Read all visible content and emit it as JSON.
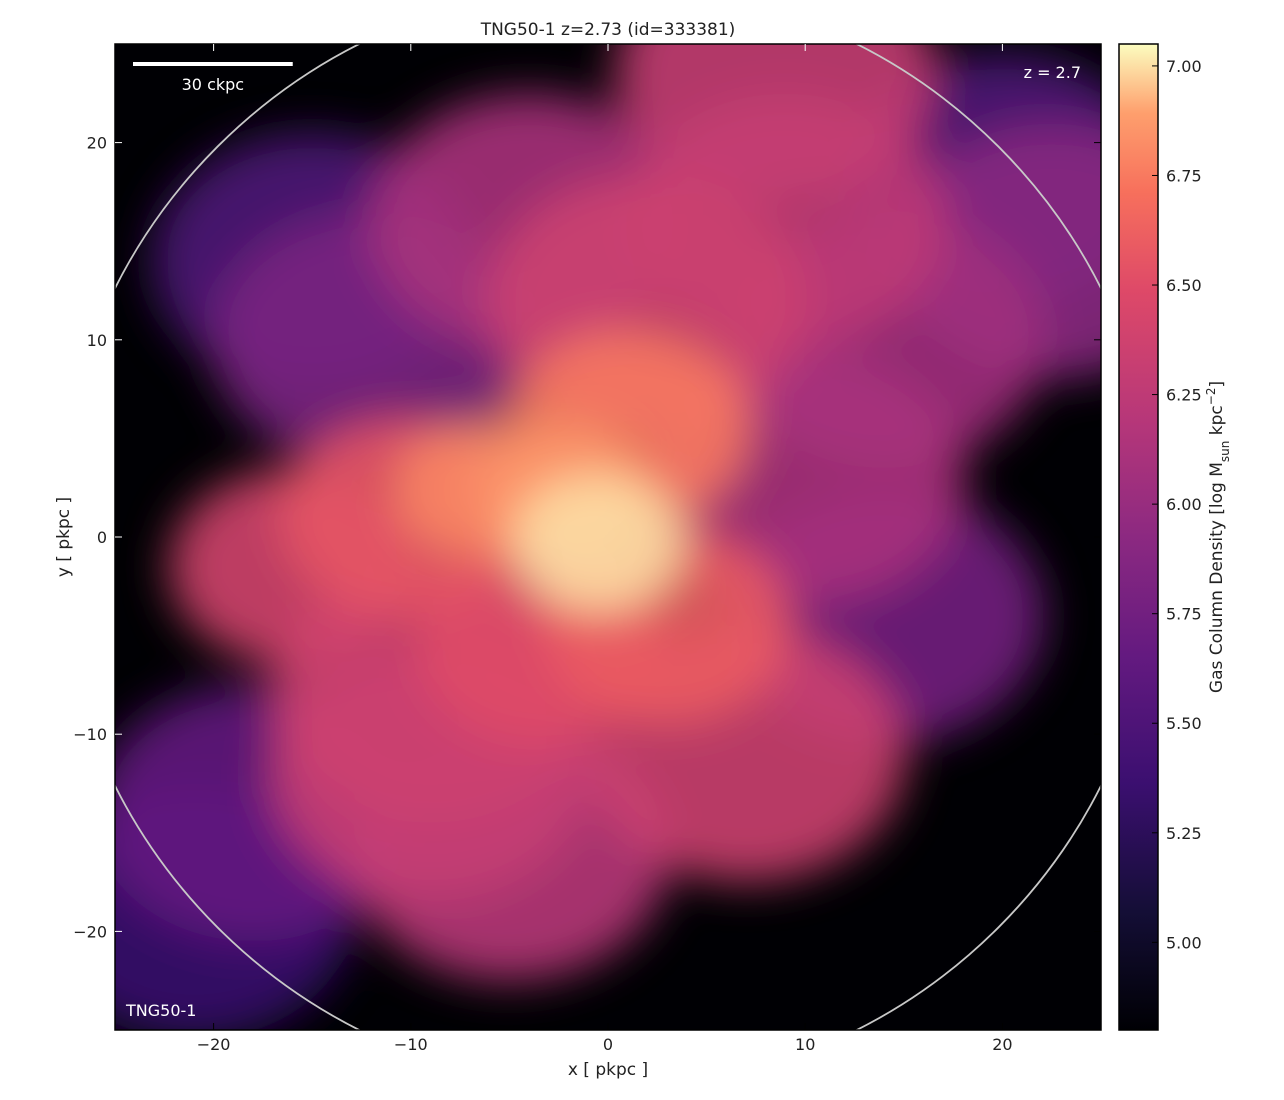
{
  "chart_data": {
    "type": "heatmap",
    "title": "TNG50-1 z=2.73 (id=333381)",
    "xlabel": "x [ pkpc ]",
    "ylabel": "y [ pkpc ]",
    "xlim": [
      -25,
      25
    ],
    "ylim": [
      -25,
      25
    ],
    "xticks": [
      -20,
      -10,
      0,
      10,
      20
    ],
    "yticks": [
      20,
      10,
      0,
      -10,
      -20
    ],
    "xtick_labels": [
      "−20",
      "−10",
      "0",
      "10",
      "20"
    ],
    "ytick_labels": [
      "20",
      "10",
      "0",
      "−10",
      "−20"
    ],
    "colorbar": {
      "label": "Gas Column Density [log M",
      "label_sub": "sun",
      "label_mid": " kpc",
      "label_sup": "−2",
      "label_end": "]",
      "range": [
        4.8,
        7.05
      ],
      "ticks": [
        7.0,
        6.75,
        6.5,
        6.25,
        6.0,
        5.75,
        5.5,
        5.25,
        5.0
      ],
      "tick_labels": [
        "7.00",
        "6.75",
        "6.50",
        "6.25",
        "6.00",
        "5.75",
        "5.50",
        "5.25",
        "5.00"
      ],
      "colormap": "magma"
    },
    "circle": {
      "center": [
        0,
        0
      ],
      "radius": 28,
      "color": "#c8c8c8"
    },
    "scale_bar": {
      "label": "30 ckpc",
      "length_pkpc": 8.1
    },
    "annotations": {
      "redshift": "z = 2.7",
      "simulation": "TNG50-1"
    },
    "blobs": [
      {
        "x": -0.5,
        "y": -0.3,
        "level": 7.0
      },
      {
        "x": -2.5,
        "y": 2.5,
        "level": 6.85
      },
      {
        "x": 1.0,
        "y": 5.5,
        "level": 6.75
      },
      {
        "x": -6.5,
        "y": 2.4,
        "level": 6.8
      },
      {
        "x": -10.5,
        "y": 1.0,
        "level": 6.55
      },
      {
        "x": -16.0,
        "y": -1.5,
        "level": 6.4
      },
      {
        "x": 3.0,
        "y": -4.5,
        "level": 6.6
      },
      {
        "x": -3.5,
        "y": -5.5,
        "level": 6.5
      },
      {
        "x": -9.0,
        "y": -8.0,
        "level": 6.35
      },
      {
        "x": -9.0,
        "y": -12.0,
        "level": 6.3
      },
      {
        "x": -5.0,
        "y": -16.0,
        "level": 6.2
      },
      {
        "x": 7.0,
        "y": -11.0,
        "level": 6.35
      },
      {
        "x": 2.0,
        "y": 12.0,
        "level": 6.35
      },
      {
        "x": 9.0,
        "y": 16.0,
        "level": 6.25
      },
      {
        "x": 8.5,
        "y": 23.5,
        "level": 6.3
      },
      {
        "x": -4.0,
        "y": 16.0,
        "level": 6.1
      },
      {
        "x": 10.0,
        "y": 3.0,
        "level": 6.1
      },
      {
        "x": 14.0,
        "y": 10.0,
        "level": 6.05
      },
      {
        "x": -12.0,
        "y": 10.0,
        "level": 5.8
      },
      {
        "x": 14.0,
        "y": -4.0,
        "level": 5.75
      },
      {
        "x": -18.0,
        "y": -14.0,
        "level": 5.65
      },
      {
        "x": -15.0,
        "y": 14.0,
        "level": 5.5
      },
      {
        "x": 20.0,
        "y": 18.0,
        "level": 5.5
      },
      {
        "x": 22.5,
        "y": 14.5,
        "level": 5.9
      },
      {
        "x": -21.0,
        "y": -19.0,
        "level": 5.35
      }
    ]
  }
}
